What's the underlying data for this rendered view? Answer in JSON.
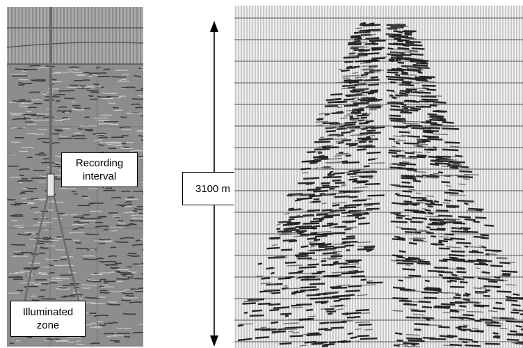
{
  "left_panel": {
    "recording_label_line1": "Recording",
    "recording_label_line2": "interval",
    "illuminated_label_line1": "Illuminated",
    "illuminated_label_line2": "zone"
  },
  "right_panel": {
    "depth_label": "3100 m"
  },
  "colors": {
    "background": "#ffffff",
    "seismic_dark": "#111111",
    "seismic_mid": "#8a8a8a",
    "well": "#6a6a6a"
  }
}
